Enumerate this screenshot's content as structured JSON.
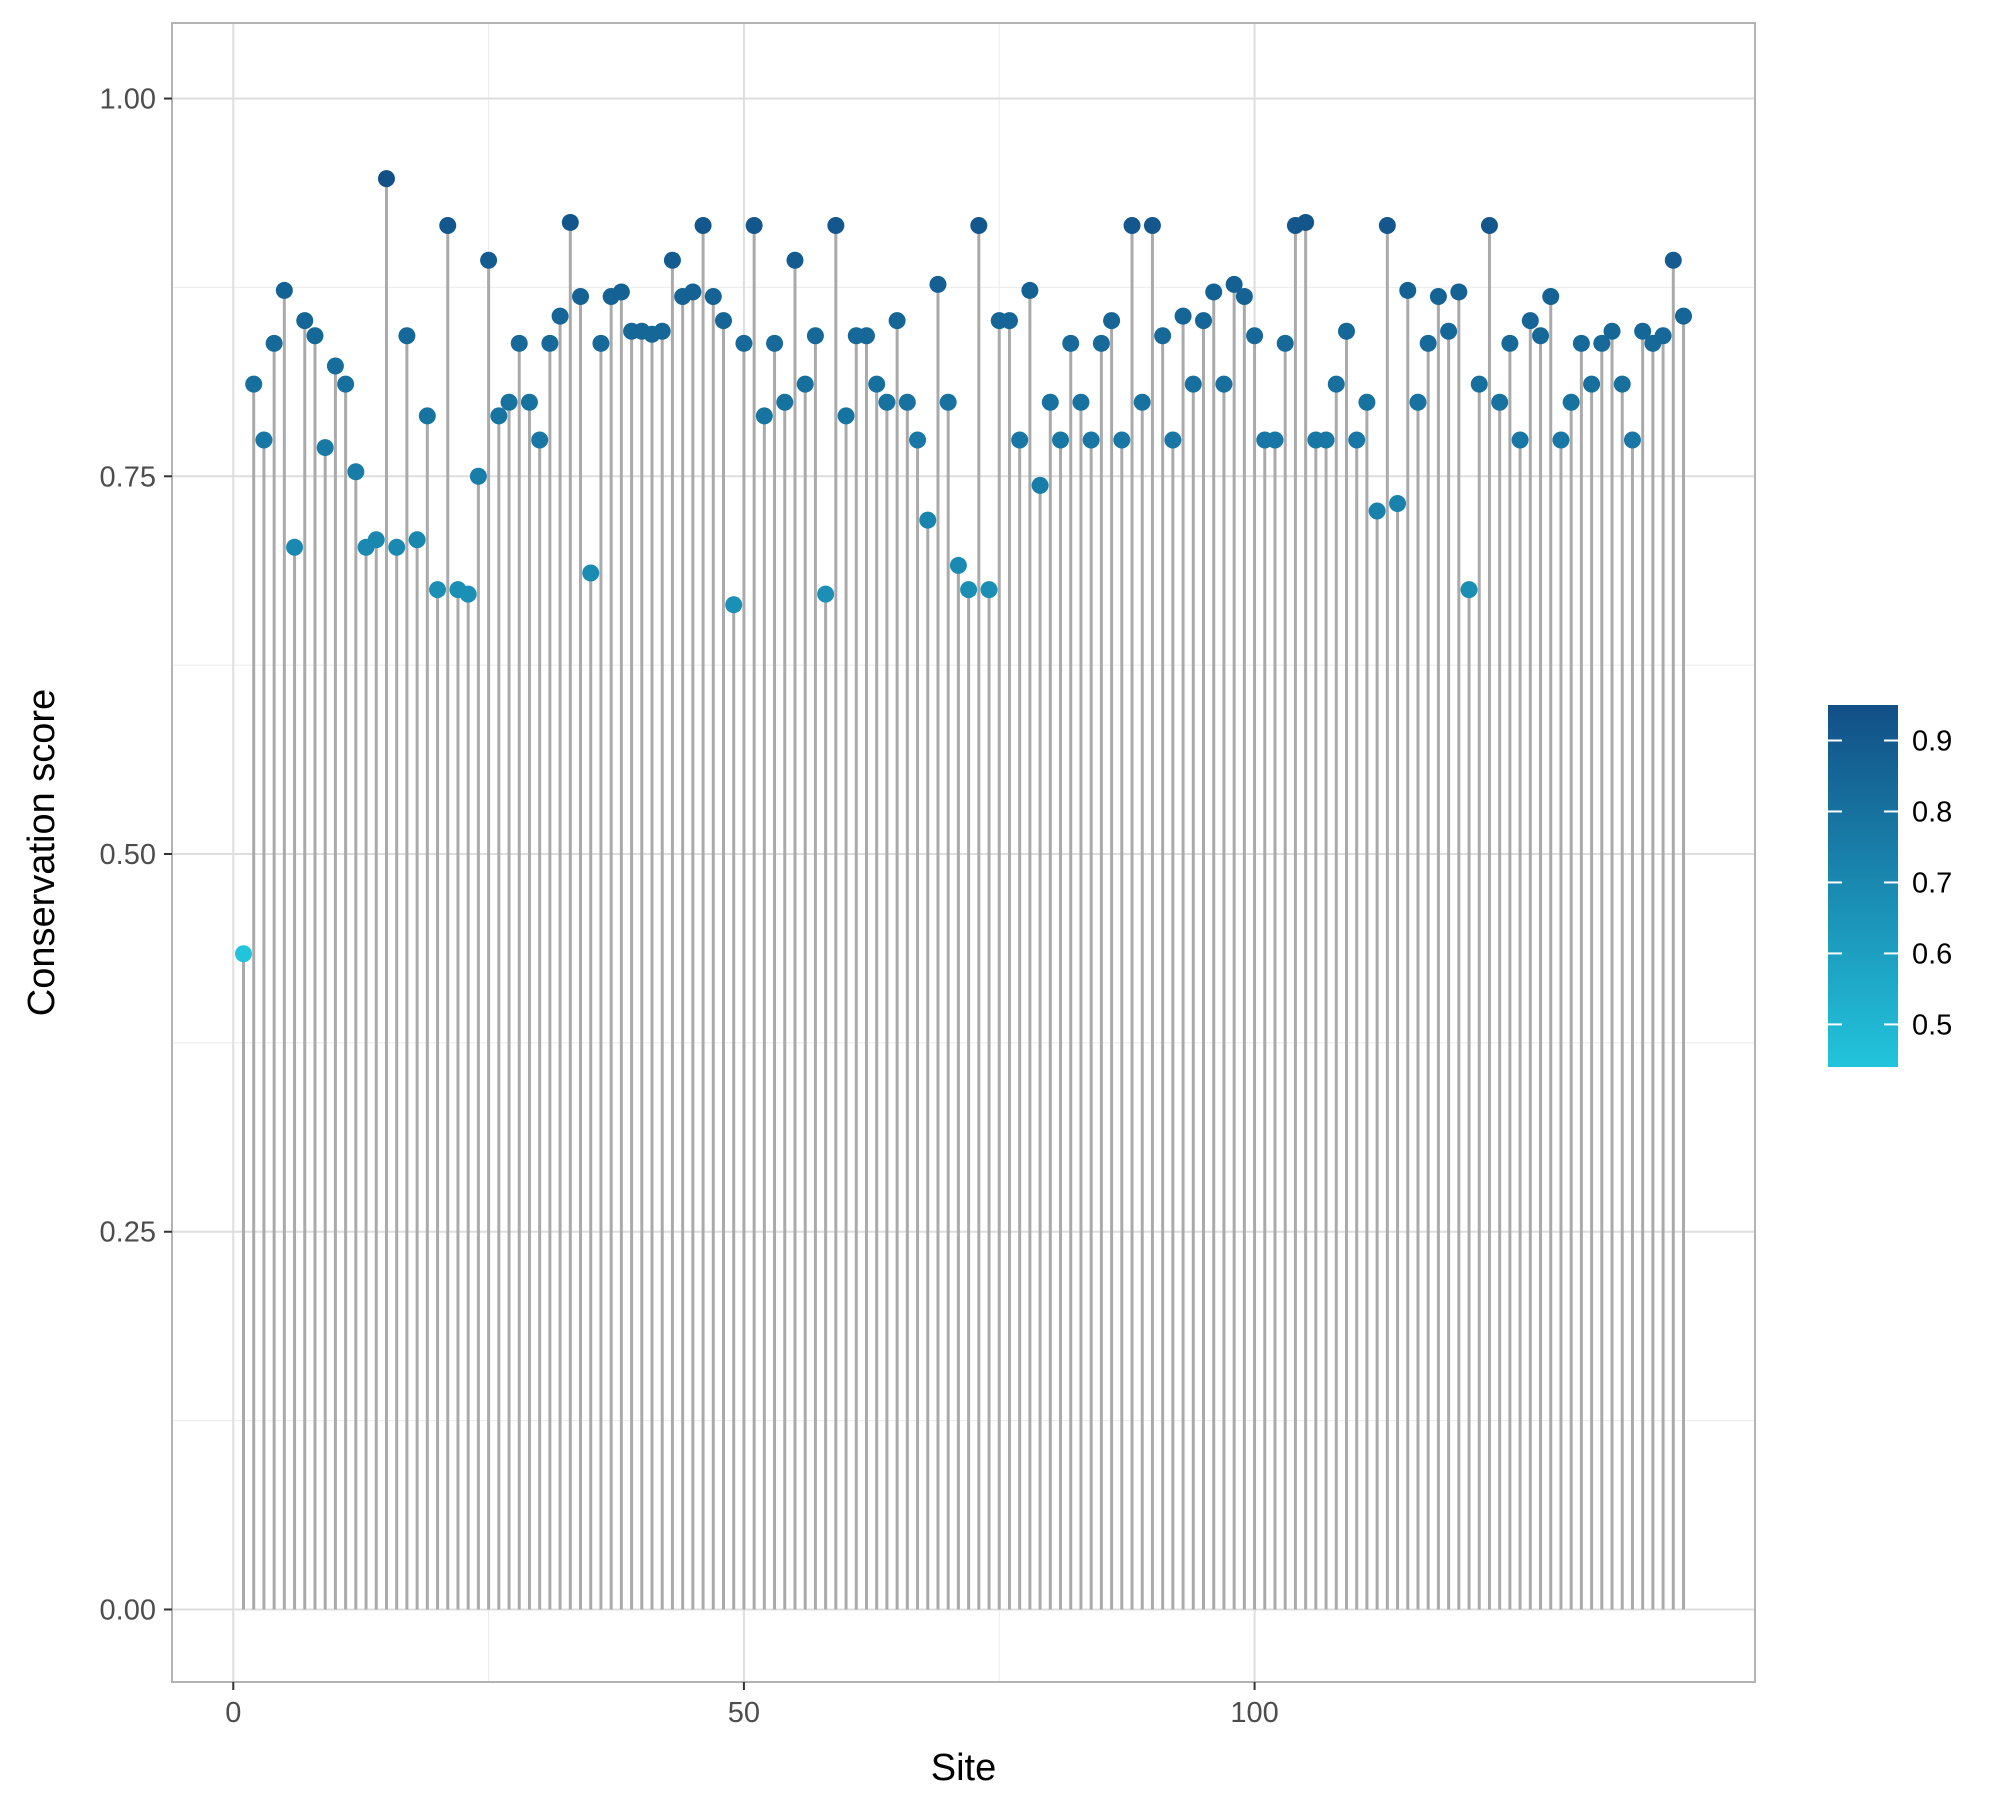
{
  "chart_data": {
    "type": "scatter",
    "geom": "lollipop",
    "title": "",
    "xlabel": "Site",
    "ylabel": "Conservation score",
    "xlim": [
      -6,
      149
    ],
    "ylim": [
      -0.048,
      1.05
    ],
    "x_ticks": [
      0,
      50,
      100
    ],
    "x_tick_labels": [
      "0",
      "50",
      "100"
    ],
    "y_ticks": [
      0,
      0.25,
      0.5,
      0.75,
      1.0
    ],
    "y_tick_labels": [
      "0.00",
      "0.25",
      "0.50",
      "0.75",
      "1.00"
    ],
    "grid": true,
    "legend": {
      "placement": "right",
      "type": "colorbar",
      "range": [
        0.44,
        0.95
      ],
      "ticks": [
        0.5,
        0.6,
        0.7,
        0.8,
        0.9
      ],
      "tick_labels": [
        "0.5",
        "0.6",
        "0.7",
        "0.8",
        "0.9"
      ],
      "low_color": "#22c4dc",
      "high_color": "#124f86"
    },
    "stem_color": "#aaaaaa",
    "series": [
      {
        "x": [
          1,
          2,
          3,
          4,
          5,
          6,
          7,
          8,
          9,
          10,
          11,
          12,
          13,
          14,
          15,
          16,
          17,
          18,
          19,
          20,
          21,
          22,
          23,
          24,
          25,
          26,
          27,
          28,
          29,
          30,
          31,
          32,
          33,
          34,
          35,
          36,
          37,
          38,
          39,
          40,
          41,
          42,
          43,
          44,
          45,
          46,
          47,
          48,
          49,
          50,
          51,
          52,
          53,
          54,
          55,
          56,
          57,
          58,
          59,
          60,
          61,
          62,
          63,
          64,
          65,
          66,
          67,
          68,
          69,
          70,
          71,
          72,
          73,
          74,
          75,
          76,
          77,
          78,
          79,
          80,
          81,
          82,
          83,
          84,
          85,
          86,
          87,
          88,
          89,
          90,
          91,
          92,
          93,
          94,
          95,
          96,
          97,
          98,
          99,
          100,
          101,
          102,
          103,
          104,
          105,
          106,
          107,
          108,
          109,
          110,
          111,
          112,
          113,
          114,
          115,
          116,
          117,
          118,
          119,
          120,
          121,
          122,
          123,
          124,
          125,
          126,
          127,
          128,
          129,
          130,
          131,
          132,
          133,
          134,
          135,
          136,
          137,
          138,
          139,
          140,
          141,
          142
        ],
        "y": [
          0.434,
          0.811,
          0.774,
          0.838,
          0.873,
          0.703,
          0.853,
          0.843,
          0.769,
          0.823,
          0.811,
          0.753,
          0.703,
          0.708,
          0.947,
          0.703,
          0.843,
          0.708,
          0.79,
          0.675,
          0.916,
          0.675,
          0.672,
          0.75,
          0.893,
          0.79,
          0.799,
          0.838,
          0.799,
          0.774,
          0.838,
          0.856,
          0.918,
          0.869,
          0.686,
          0.838,
          0.869,
          0.872,
          0.846,
          0.846,
          0.844,
          0.846,
          0.893,
          0.869,
          0.872,
          0.916,
          0.869,
          0.853,
          0.665,
          0.838,
          0.916,
          0.79,
          0.838,
          0.799,
          0.893,
          0.811,
          0.843,
          0.672,
          0.916,
          0.79,
          0.843,
          0.843,
          0.811,
          0.799,
          0.853,
          0.799,
          0.774,
          0.721,
          0.877,
          0.799,
          0.691,
          0.675,
          0.916,
          0.675,
          0.853,
          0.853,
          0.774,
          0.873,
          0.744,
          0.799,
          0.774,
          0.838,
          0.799,
          0.774,
          0.838,
          0.853,
          0.774,
          0.916,
          0.799,
          0.916,
          0.843,
          0.774,
          0.856,
          0.811,
          0.853,
          0.872,
          0.811,
          0.877,
          0.869,
          0.843,
          0.774,
          0.774,
          0.838,
          0.916,
          0.918,
          0.774,
          0.774,
          0.811,
          0.846,
          0.774,
          0.799,
          0.727,
          0.916,
          0.732,
          0.873,
          0.799,
          0.838,
          0.869,
          0.846,
          0.872,
          0.675,
          0.811,
          0.916,
          0.799,
          0.838,
          0.774,
          0.853,
          0.843,
          0.869,
          0.774,
          0.799,
          0.838,
          0.811,
          0.838,
          0.846,
          0.811,
          0.774,
          0.846,
          0.838,
          0.843,
          0.893,
          0.856
        ]
      }
    ]
  }
}
